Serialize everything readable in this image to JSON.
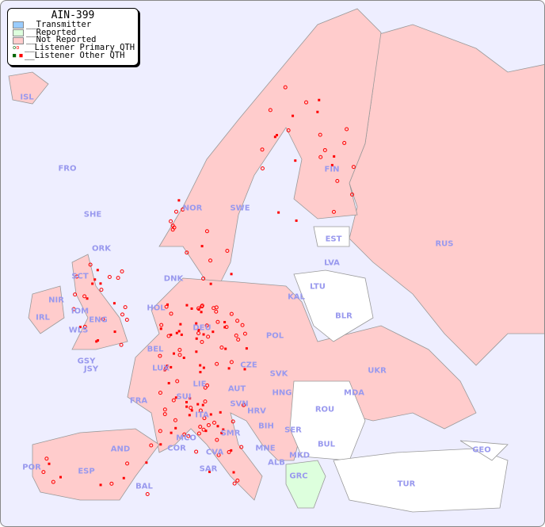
{
  "legend": {
    "title": "AIN-399",
    "items": [
      {
        "label": "__Transmitter",
        "color": "#99ccff"
      },
      {
        "label": "__Reported",
        "color": "#ddffdd"
      },
      {
        "label": "__Not Reported",
        "color": "#ffcccc"
      },
      {
        "label": "__Listener Primary QTH",
        "color": "#ff0000"
      },
      {
        "label": "__Listener Other QTH",
        "color": "#ff0000"
      }
    ]
  },
  "colors": {
    "sea": "#eeeeff",
    "not_reported": "#ffcccc",
    "reported": "#ddffdd",
    "no_data": "#ffffff",
    "listener": "#ff0000",
    "label": "#9999ee"
  },
  "countries": [
    "ISL",
    "FRO",
    "SHE",
    "ORK",
    "NOR",
    "SWE",
    "FIN",
    "EST",
    "LVA",
    "LTU",
    "RUS",
    "KAL",
    "DNK",
    "BLR",
    "HOL",
    "IRL",
    "IOM",
    "WLS",
    "ENG",
    "DEU",
    "POL",
    "BEL",
    "LUX",
    "GSY",
    "JSY",
    "CZE",
    "UKR",
    "SVK",
    "LIE",
    "AUT",
    "HNG",
    "MDA",
    "FRA",
    "SUI",
    "SVN",
    "HRV",
    "ROU",
    "ITA",
    "BIH",
    "SER",
    "AND",
    "MCO",
    "COR",
    "SMR",
    "MNE",
    "BUL",
    "GEO",
    "CVA",
    "ALB",
    "MKD",
    "POR",
    "ESP",
    "SAR",
    "GRC",
    "BAL",
    "TUR",
    "SCT",
    "NIR"
  ]
}
